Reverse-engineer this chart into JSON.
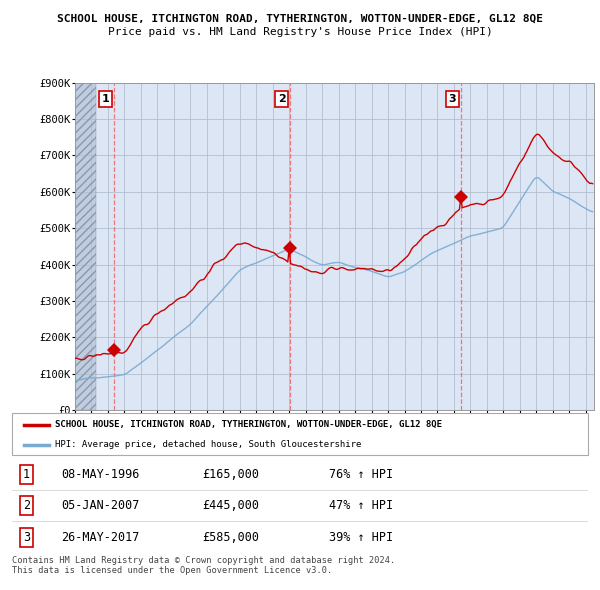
{
  "title1": "SCHOOL HOUSE, ITCHINGTON ROAD, TYTHERINGTON, WOTTON-UNDER-EDGE, GL12 8QE",
  "title2": "Price paid vs. HM Land Registry's House Price Index (HPI)",
  "ylim": [
    0,
    900000
  ],
  "yticks": [
    0,
    100000,
    200000,
    300000,
    400000,
    500000,
    600000,
    700000,
    800000,
    900000
  ],
  "ytick_labels": [
    "£0",
    "£100K",
    "£200K",
    "£300K",
    "£400K",
    "£500K",
    "£600K",
    "£700K",
    "£800K",
    "£900K"
  ],
  "legend_label_red": "SCHOOL HOUSE, ITCHINGTON ROAD, TYTHERINGTON, WOTTON-UNDER-EDGE, GL12 8QE",
  "legend_label_blue": "HPI: Average price, detached house, South Gloucestershire",
  "sale1_date": 1996.37,
  "sale1_price": 165000,
  "sale1_label": "1",
  "sale2_date": 2007.04,
  "sale2_price": 445000,
  "sale2_label": "2",
  "sale3_date": 2017.41,
  "sale3_price": 585000,
  "sale3_label": "3",
  "table_rows": [
    [
      "1",
      "08-MAY-1996",
      "£165,000",
      "76% ↑ HPI"
    ],
    [
      "2",
      "05-JAN-2007",
      "£445,000",
      "47% ↑ HPI"
    ],
    [
      "3",
      "26-MAY-2017",
      "£585,000",
      "39% ↑ HPI"
    ]
  ],
  "footer": "Contains HM Land Registry data © Crown copyright and database right 2024.\nThis data is licensed under the Open Government Licence v3.0.",
  "red_color": "#cc0000",
  "blue_color": "#7aaad0",
  "plot_bg": "#dce6f5",
  "grid_color": "#b0bfd0",
  "hatch_color": "#c0cce0"
}
